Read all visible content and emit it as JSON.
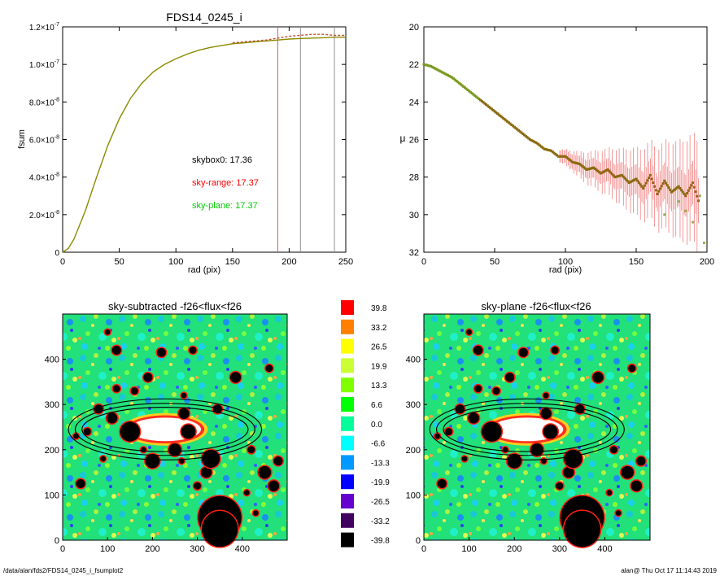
{
  "footer": {
    "left": "/data/alan/fds2/FDS14_0245_i_fsumplot2",
    "right": "alan@  Thu Oct 17 11:14:43 2019"
  },
  "chart_data": [
    {
      "type": "line",
      "title": "FDS14_0245_i",
      "xlabel": "rad (pix)",
      "ylabel": "fsum",
      "xlim": [
        0,
        250
      ],
      "ylim": [
        0,
        1.2e-07
      ],
      "xticks": [
        "0",
        "50",
        "100",
        "150",
        "200",
        "250"
      ],
      "yticks": [
        {
          "value": 0,
          "mant": "0",
          "exp": ""
        },
        {
          "value": 2e-08,
          "mant": "2.0×10",
          "exp": "-8"
        },
        {
          "value": 4e-08,
          "mant": "4.0×10",
          "exp": "-8"
        },
        {
          "value": 6e-08,
          "mant": "6.0×10",
          "exp": "-8"
        },
        {
          "value": 8e-08,
          "mant": "8.0×10",
          "exp": "-8"
        },
        {
          "value": 1e-07,
          "mant": "1.0×10",
          "exp": "-7"
        },
        {
          "value": 1.2e-07,
          "mant": "1.2×10",
          "exp": "-7"
        }
      ],
      "annotations": [
        {
          "text": "skybox0: 17.36",
          "color": "#000000"
        },
        {
          "text": "sky-range: 17.37",
          "color": "#ff0000"
        },
        {
          "text": "sky-plane: 17.37",
          "color": "#00cc00"
        }
      ],
      "vlines": [
        {
          "x": 190,
          "color": "#e06060"
        },
        {
          "x": 210,
          "color": "#909090"
        },
        {
          "x": 240,
          "color": "#909090"
        }
      ],
      "series": [
        {
          "color": "#8a8a00",
          "x": [
            0,
            5,
            10,
            20,
            30,
            40,
            50,
            60,
            70,
            80,
            90,
            100,
            110,
            120,
            130,
            140,
            150,
            160,
            170,
            180,
            190,
            200,
            210,
            220,
            230,
            240,
            250
          ],
          "values": [
            0,
            2e-09,
            7e-09,
            2.2e-08,
            4e-08,
            5.7e-08,
            7.1e-08,
            8.2e-08,
            9e-08,
            9.6e-08,
            1e-07,
            1.03e-07,
            1.055e-07,
            1.075e-07,
            1.09e-07,
            1.1e-07,
            1.11e-07,
            1.115e-07,
            1.12e-07,
            1.125e-07,
            1.13e-07,
            1.135e-07,
            1.138e-07,
            1.14e-07,
            1.142e-07,
            1.145e-07,
            1.145e-07
          ]
        },
        {
          "color": "#c05030",
          "x": [
            150,
            160,
            170,
            180,
            190,
            200,
            210,
            220,
            230,
            240,
            250
          ],
          "values": [
            1.115e-07,
            1.12e-07,
            1.125e-07,
            1.13e-07,
            1.14e-07,
            1.15e-07,
            1.155e-07,
            1.16e-07,
            1.16e-07,
            1.155e-07,
            1.155e-07
          ]
        }
      ]
    },
    {
      "type": "scatter",
      "title": "",
      "xlabel": "rad (pix)",
      "ylabel": "μ",
      "xlim": [
        0,
        200
      ],
      "ylim": [
        32,
        20
      ],
      "xticks": [
        "0",
        "50",
        "100",
        "150",
        "200"
      ],
      "yticks": [
        "20",
        "22",
        "24",
        "26",
        "28",
        "30",
        "32"
      ],
      "series": [
        {
          "color": "#8a6a10",
          "x": [
            0,
            5,
            10,
            15,
            20,
            25,
            30,
            35,
            40,
            45,
            50,
            55,
            60,
            65,
            70,
            75,
            80,
            85,
            90,
            95,
            100,
            105,
            110,
            115,
            120,
            125,
            130,
            135,
            140,
            145,
            150,
            155,
            160,
            165,
            170,
            175,
            180,
            185,
            190,
            195
          ],
          "values": [
            22.0,
            22.1,
            22.3,
            22.5,
            22.7,
            23.0,
            23.3,
            23.6,
            23.9,
            24.2,
            24.5,
            24.8,
            25.1,
            25.4,
            25.7,
            26.0,
            26.2,
            26.5,
            26.6,
            26.9,
            26.9,
            27.2,
            27.3,
            27.6,
            27.5,
            27.8,
            27.6,
            28.0,
            27.9,
            28.3,
            28.1,
            28.6,
            27.9,
            28.9,
            28.2,
            28.8,
            28.5,
            29.0,
            28.3,
            29.5
          ]
        }
      ]
    },
    {
      "type": "heatmap",
      "title": "sky-subtracted -f26<flux<f26",
      "xlim": [
        0,
        500
      ],
      "ylim": [
        0,
        500
      ],
      "xticks": [
        "0",
        "100",
        "200",
        "300",
        "400"
      ],
      "yticks": [
        "0",
        "100",
        "200",
        "300",
        "400"
      ]
    },
    {
      "type": "heatmap",
      "title": "sky-plane -f26<flux<f26",
      "xlim": [
        0,
        500
      ],
      "ylim": [
        0,
        500
      ],
      "xticks": [
        "0",
        "100",
        "200",
        "300",
        "400"
      ],
      "yticks": [
        "0",
        "100",
        "200",
        "300",
        "400"
      ]
    },
    {
      "type": "colorbar",
      "levels": [
        {
          "label": "39.8",
          "color": "#ff0000"
        },
        {
          "label": "33.2",
          "color": "#ff8000"
        },
        {
          "label": "26.5",
          "color": "#ffff00"
        },
        {
          "label": "19.9",
          "color": "#ccff33"
        },
        {
          "label": "13.3",
          "color": "#80ff00"
        },
        {
          "label": "6.6",
          "color": "#00ff00"
        },
        {
          "label": "0.0",
          "color": "#00ff99"
        },
        {
          "label": "-6.6",
          "color": "#00ffff"
        },
        {
          "label": "-13.3",
          "color": "#0099ff"
        },
        {
          "label": "-19.9",
          "color": "#0000ff"
        },
        {
          "label": "-26.5",
          "color": "#6600cc"
        },
        {
          "label": "-33.2",
          "color": "#400060"
        },
        {
          "label": "-39.8",
          "color": "#000000"
        }
      ]
    }
  ]
}
